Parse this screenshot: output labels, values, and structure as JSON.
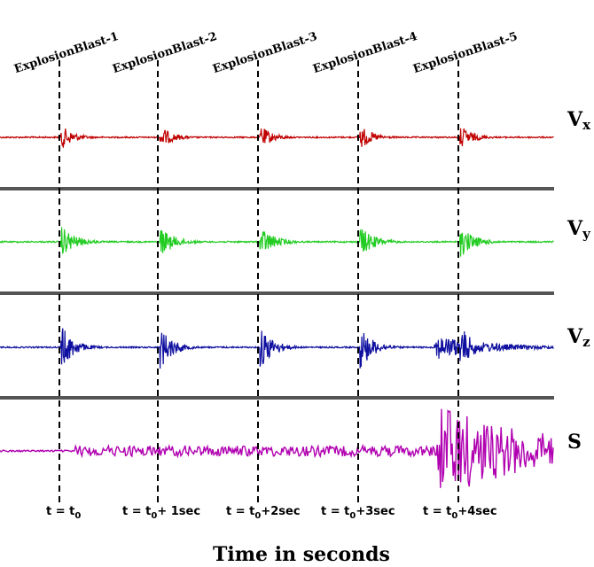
{
  "blasts": [
    "ExplosionBlast-1",
    "ExplosionBlast-2",
    "ExplosionBlast-3",
    "ExplosionBlast-4",
    "ExplosionBlast-5"
  ],
  "channels": [
    {
      "main": "V",
      "sub": "x"
    },
    {
      "main": "V",
      "sub": "y"
    },
    {
      "main": "V",
      "sub": "z"
    },
    {
      "main": "S"
    }
  ],
  "time_labels": [
    {
      "before": "t = t",
      "sub": "0"
    },
    {
      "before": "t = t",
      "sub": "0",
      "after": "+ 1sec"
    },
    {
      "before": "t = t",
      "sub": "0",
      "after": "+2sec"
    },
    {
      "before": "t = t",
      "sub": "0",
      "after": "+3sec"
    },
    {
      "before": "t = t",
      "sub": "0",
      "after": "+4sec"
    }
  ],
  "x_axis_title": "Time in seconds"
}
